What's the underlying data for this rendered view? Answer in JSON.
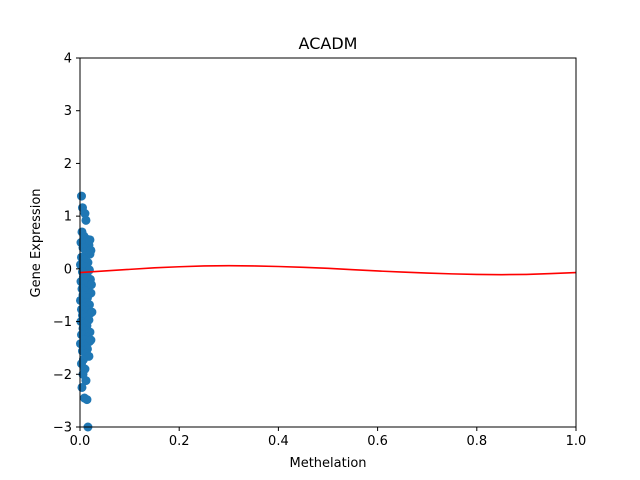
{
  "chart_data": {
    "type": "scatter",
    "title": "ACADM",
    "xlabel": "Methelation",
    "ylabel": "Gene Expression",
    "xlim": [
      0.0,
      1.0
    ],
    "ylim": [
      -3,
      4
    ],
    "grid": false,
    "x_ticks": [
      "0.0",
      "0.2",
      "0.4",
      "0.6",
      "0.8",
      "1.0"
    ],
    "x_tick_values": [
      0.0,
      0.2,
      0.4,
      0.6,
      0.8,
      1.0
    ],
    "y_ticks": [
      "−3",
      "−2",
      "−1",
      "0",
      "1",
      "2",
      "3",
      "4"
    ],
    "y_tick_values": [
      -3,
      -2,
      -1,
      0,
      1,
      2,
      3,
      4
    ],
    "colors": {
      "points": "#1f77b4",
      "fit": "#ff0000"
    },
    "series": [
      {
        "kind": "scatter",
        "points": [
          [
            0.003,
            1.38
          ],
          [
            0.005,
            1.16
          ],
          [
            0.01,
            1.05
          ],
          [
            0.012,
            0.92
          ],
          [
            0.004,
            0.7
          ],
          [
            0.008,
            0.62
          ],
          [
            0.015,
            0.56
          ],
          [
            0.002,
            0.5
          ],
          [
            0.018,
            0.45
          ],
          [
            0.006,
            0.4
          ],
          [
            0.012,
            0.33
          ],
          [
            0.02,
            0.28
          ],
          [
            0.003,
            0.22
          ],
          [
            0.009,
            0.18
          ],
          [
            0.016,
            0.12
          ],
          [
            0.001,
            0.08
          ],
          [
            0.011,
            0.03
          ],
          [
            0.019,
            -0.02
          ],
          [
            0.005,
            -0.06
          ],
          [
            0.014,
            -0.1
          ],
          [
            0.007,
            -0.15
          ],
          [
            0.021,
            -0.2
          ],
          [
            0.002,
            -0.24
          ],
          [
            0.012,
            -0.29
          ],
          [
            0.017,
            -0.33
          ],
          [
            0.004,
            -0.38
          ],
          [
            0.01,
            -0.42
          ],
          [
            0.022,
            -0.46
          ],
          [
            0.006,
            -0.5
          ],
          [
            0.015,
            -0.55
          ],
          [
            0.001,
            -0.6
          ],
          [
            0.013,
            -0.64
          ],
          [
            0.019,
            -0.68
          ],
          [
            0.008,
            -0.72
          ],
          [
            0.003,
            -0.77
          ],
          [
            0.016,
            -0.8
          ],
          [
            0.021,
            -0.84
          ],
          [
            0.005,
            -0.88
          ],
          [
            0.011,
            -0.92
          ],
          [
            0.018,
            -0.97
          ],
          [
            0.002,
            -1.0
          ],
          [
            0.009,
            -1.04
          ],
          [
            0.014,
            -1.08
          ],
          [
            0.006,
            -1.13
          ],
          [
            0.012,
            -1.17
          ],
          [
            0.02,
            -1.2
          ],
          [
            0.003,
            -1.25
          ],
          [
            0.016,
            -1.3
          ],
          [
            0.008,
            -1.34
          ],
          [
            0.019,
            -1.38
          ],
          [
            0.001,
            -1.42
          ],
          [
            0.011,
            -1.47
          ],
          [
            0.015,
            -1.52
          ],
          [
            0.005,
            -1.56
          ],
          [
            0.013,
            -1.6
          ],
          [
            0.018,
            -1.66
          ],
          [
            0.007,
            -1.72
          ],
          [
            0.003,
            -1.8
          ],
          [
            0.01,
            -1.9
          ],
          [
            0.006,
            -2.0
          ],
          [
            0.012,
            -2.12
          ],
          [
            0.004,
            -2.25
          ],
          [
            0.009,
            -2.45
          ],
          [
            0.014,
            -2.48
          ],
          [
            0.016,
            -3.0
          ],
          [
            0.02,
            0.55
          ],
          [
            0.022,
            0.35
          ],
          [
            0.023,
            -0.3
          ],
          [
            0.024,
            -0.82
          ],
          [
            0.022,
            -1.35
          ]
        ]
      },
      {
        "kind": "line",
        "x": [
          0.0,
          0.05,
          0.1,
          0.15,
          0.2,
          0.25,
          0.3,
          0.35,
          0.4,
          0.45,
          0.5,
          0.55,
          0.6,
          0.65,
          0.7,
          0.75,
          0.8,
          0.85,
          0.9,
          0.95,
          1.0
        ],
        "y": [
          -0.07,
          -0.04,
          -0.01,
          0.02,
          0.04,
          0.055,
          0.06,
          0.055,
          0.045,
          0.03,
          0.01,
          -0.015,
          -0.04,
          -0.06,
          -0.08,
          -0.095,
          -0.105,
          -0.11,
          -0.105,
          -0.09,
          -0.07
        ]
      }
    ]
  }
}
